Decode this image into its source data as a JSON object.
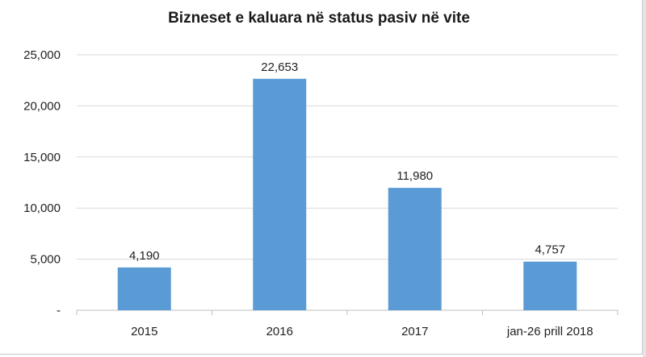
{
  "chart_data": {
    "type": "bar",
    "title": "Bizneset e kaluara në status pasiv në vite",
    "categories": [
      "2015",
      "2016",
      "2017",
      "jan-26 prill 2018"
    ],
    "values": [
      4190,
      22653,
      11980,
      4757
    ],
    "data_labels": [
      "4,190",
      "22,653",
      "11,980",
      "4,757"
    ],
    "ylim": [
      0,
      25000
    ],
    "yticks": [
      0,
      5000,
      10000,
      15000,
      20000,
      25000
    ],
    "ytick_labels": [
      "-",
      "5,000",
      "10,000",
      "15,000",
      "20,000",
      "25,000"
    ],
    "xlabel": "",
    "ylabel": "",
    "grid": true,
    "legend": "none",
    "bar_color": "#5b9bd5",
    "grid_color": "#d9d9d9"
  }
}
